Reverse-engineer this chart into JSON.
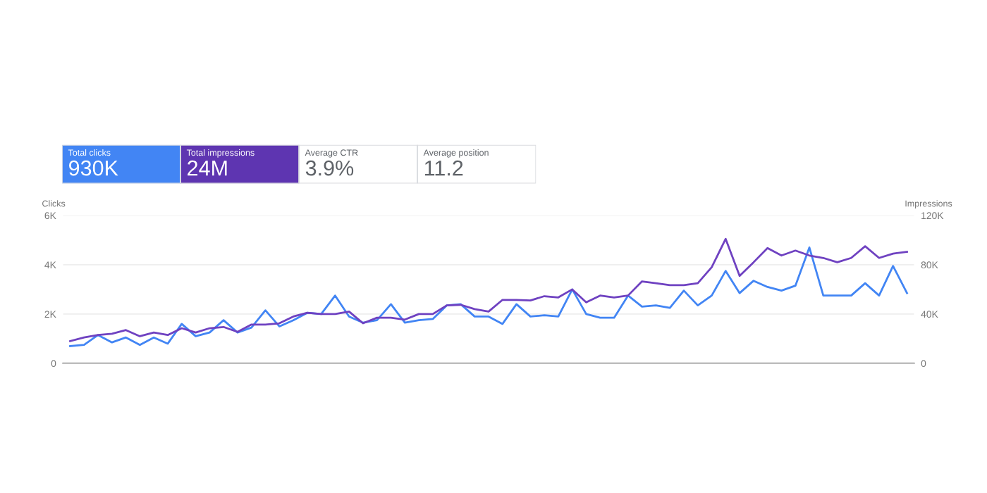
{
  "chart_data": [
    {
      "type": "other",
      "annotations": [
        "Total clicks",
        "930K",
        "Total impressions",
        "24M",
        "Average CTR",
        "3.9%",
        "Average position",
        "11.2"
      ],
      "colors": [
        "#4285f4",
        "#5e35b1",
        "#ffffff",
        "#ffffff"
      ]
    },
    {
      "type": "line",
      "ylabel": "Clicks",
      "y2label": "Impressions",
      "categories": [
        null,
        null,
        null,
        null,
        null,
        null,
        null,
        null,
        null,
        null,
        null,
        null,
        null,
        null,
        null,
        null,
        null,
        null,
        null,
        null,
        null,
        null,
        null,
        null,
        null,
        null,
        null,
        null,
        null,
        null,
        null,
        null,
        null,
        null,
        null,
        null,
        null,
        null,
        null,
        null,
        null,
        null,
        null,
        null,
        null,
        null,
        null,
        null,
        null,
        null,
        null,
        null,
        null,
        null,
        null,
        null,
        null,
        null,
        null,
        null,
        null
      ],
      "series": [
        {
          "color": "#4285f4",
          "values": [
            700,
            750,
            1150,
            850,
            1050,
            750,
            1050,
            800,
            1600,
            1100,
            1250,
            1750,
            1250,
            1450,
            2150,
            1500,
            1750,
            2050,
            2000,
            2750,
            1900,
            1650,
            1750,
            2400,
            1650,
            1750,
            1800,
            2350,
            2400,
            1900,
            1900,
            1600,
            2400,
            1900,
            1950,
            1900,
            3000,
            2000,
            1850,
            1850,
            2750,
            2300,
            2350,
            2250,
            2950,
            2350,
            2750,
            3750,
            2850,
            3350,
            3100,
            2950,
            3150,
            4700,
            2750,
            2750,
            2750,
            3250,
            2750,
            3950,
            2850
          ]
        },
        {
          "color": "#6f42c1",
          "axis": "y2",
          "values": [
            18000,
            21000,
            23000,
            24000,
            27000,
            22000,
            25000,
            23000,
            28500,
            25000,
            28500,
            29500,
            25500,
            31500,
            31500,
            32500,
            38000,
            41000,
            40000,
            40000,
            42000,
            32500,
            37000,
            37000,
            35500,
            40000,
            40000,
            47000,
            47500,
            44000,
            42000,
            51500,
            51500,
            51000,
            54500,
            53500,
            60000,
            49500,
            55000,
            53500,
            55000,
            66500,
            65000,
            63500,
            63500,
            65000,
            78000,
            101000,
            71000,
            82000,
            93500,
            87500,
            91500,
            87500,
            85500,
            82000,
            85500,
            95000,
            85500,
            89000,
            90500
          ]
        }
      ],
      "ylim": [
        0,
        6000
      ],
      "yticks": [
        {
          "value": 0,
          "label": "0"
        },
        {
          "value": 2000,
          "label": "2K"
        },
        {
          "value": 4000,
          "label": "4K"
        },
        {
          "value": 6000,
          "label": "6K"
        }
      ],
      "y2lim": [
        0,
        120000
      ],
      "y2ticks": [
        {
          "value": 0,
          "label": "0"
        },
        {
          "value": 40000,
          "label": "40K"
        },
        {
          "value": 80000,
          "label": "80K"
        },
        {
          "value": 120000,
          "label": "120K"
        }
      ],
      "grid": "y",
      "tick_labels": "y"
    }
  ]
}
